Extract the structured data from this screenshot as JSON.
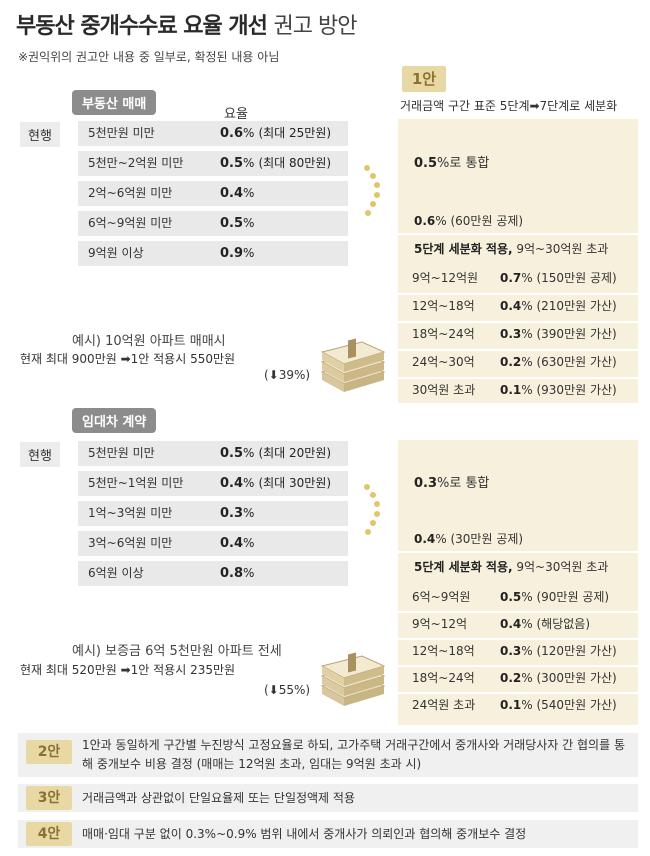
{
  "title": {
    "bold": "부동산 중개수수료 요율 개선",
    "light": "권고 방안"
  },
  "note": "※권익위의 권고안 내용 중 일부로, 확정된 내용 아님",
  "sale": {
    "pill": "부동산 매매",
    "rate_header": "요율",
    "current_label": "현행",
    "rows": [
      {
        "range": "5천만원 미만",
        "rate": "0.6",
        "pct": "%",
        "extra": "(최대 25만원)"
      },
      {
        "range": "5천만~2억원 미만",
        "rate": "0.5",
        "pct": "%",
        "extra": "(최대 80만원)"
      },
      {
        "range": "2억~6억원 미만",
        "rate": "0.4",
        "pct": "%",
        "extra": ""
      },
      {
        "range": "6억~9억원 미만",
        "rate": "0.5",
        "pct": "%",
        "extra": ""
      },
      {
        "range": "9억원 이상",
        "rate": "0.9",
        "pct": "%",
        "extra": ""
      }
    ],
    "example_title": "예시) 10억원 아파트 매매시",
    "example_line": "현재 최대 900만원 ➡1안 적용시 550만원",
    "example_change": "(⬇39%)"
  },
  "plan1": {
    "badge": "1안",
    "header": "거래금액 구간 표준 5단계➡7단계로 세분화",
    "sale": {
      "unify_rate": "0.5",
      "unify_text": "%로 통합",
      "mid_rate": "0.6",
      "mid_text": "% (60만원 공제)",
      "detail_bold": "5단계 세분화 적용,",
      "detail_rest": " 9억~30억원 초과",
      "rows": [
        {
          "range": "9억~12억원",
          "rate": "0.7",
          "note": "% (150만원 공제)"
        },
        {
          "range": "12억~18억",
          "rate": "0.4",
          "note": "% (210만원 가산)"
        },
        {
          "range": "18억~24억",
          "rate": "0.3",
          "note": "% (390만원 가산)"
        },
        {
          "range": "24억~30억",
          "rate": "0.2",
          "note": "% (630만원 가산)"
        },
        {
          "range": "30억원 초과",
          "rate": "0.1",
          "note": "% (930만원 가산)"
        }
      ]
    },
    "lease": {
      "unify_rate": "0.3",
      "unify_text": "%로 통합",
      "mid_rate": "0.4",
      "mid_text": "% (30만원 공제)",
      "detail_bold": "5단계 세분화 적용,",
      "detail_rest": " 9억~30억원 초과",
      "rows": [
        {
          "range": "6억~9억원",
          "rate": "0.5",
          "note": "% (90만원 공제)"
        },
        {
          "range": "9억~12억",
          "rate": "0.4",
          "note": "% (해당없음)"
        },
        {
          "range": "12억~18억",
          "rate": "0.3",
          "note": "% (120만원 가산)"
        },
        {
          "range": "18억~24억",
          "rate": "0.2",
          "note": "% (300만원 가산)"
        },
        {
          "range": "24억원 초과",
          "rate": "0.1",
          "note": "% (540만원 가산)"
        }
      ]
    }
  },
  "lease": {
    "pill": "임대차 계약",
    "current_label": "현행",
    "rows": [
      {
        "range": "5천만원 미만",
        "rate": "0.5",
        "pct": "%",
        "extra": "(최대 20만원)"
      },
      {
        "range": "5천만~1억원 미만",
        "rate": "0.4",
        "pct": "%",
        "extra": "(최대 30만원)"
      },
      {
        "range": "1억~3억원 미만",
        "rate": "0.3",
        "pct": "%",
        "extra": ""
      },
      {
        "range": "3억~6억원 미만",
        "rate": "0.4",
        "pct": "%",
        "extra": ""
      },
      {
        "range": "6억원 이상",
        "rate": "0.8",
        "pct": "%",
        "extra": ""
      }
    ],
    "example_title": "예시) 보증금 6억 5천만원 아파트 전세",
    "example_line": "현재 최대 520만원 ➡1안 적용시 235만원",
    "example_change": "(⬇55%)"
  },
  "options": [
    {
      "badge": "2안",
      "text": "1안과 동일하게 구간별 누진방식 고정요율로 하되, 고가주택 거래구간에서 중개사와 거래당사자 간 협의를 통해 중개보수 비용 결정 (매매는 12억원 초과, 임대는 9억원 초과 시)"
    },
    {
      "badge": "3안",
      "text": "거래금액과 상관없이 단일요율제 또는 단일정액제 적용"
    },
    {
      "badge": "4안",
      "text": "매매·임대 구분 없이 0.3%~0.9% 범위 내에서 중개사가 의뢰인과 협의해 중개보수 결정"
    }
  ],
  "colors": {
    "accent": "#e8d9a4",
    "badge_text": "#8a7132",
    "panel": "#f6f0dc",
    "row_gray": "#e9e9e9",
    "pill_gray": "#8c8c8c"
  },
  "icons": [
    "arrow-right-icon",
    "arrow-down-icon",
    "money-stack-icon",
    "dots-connector-icon"
  ]
}
